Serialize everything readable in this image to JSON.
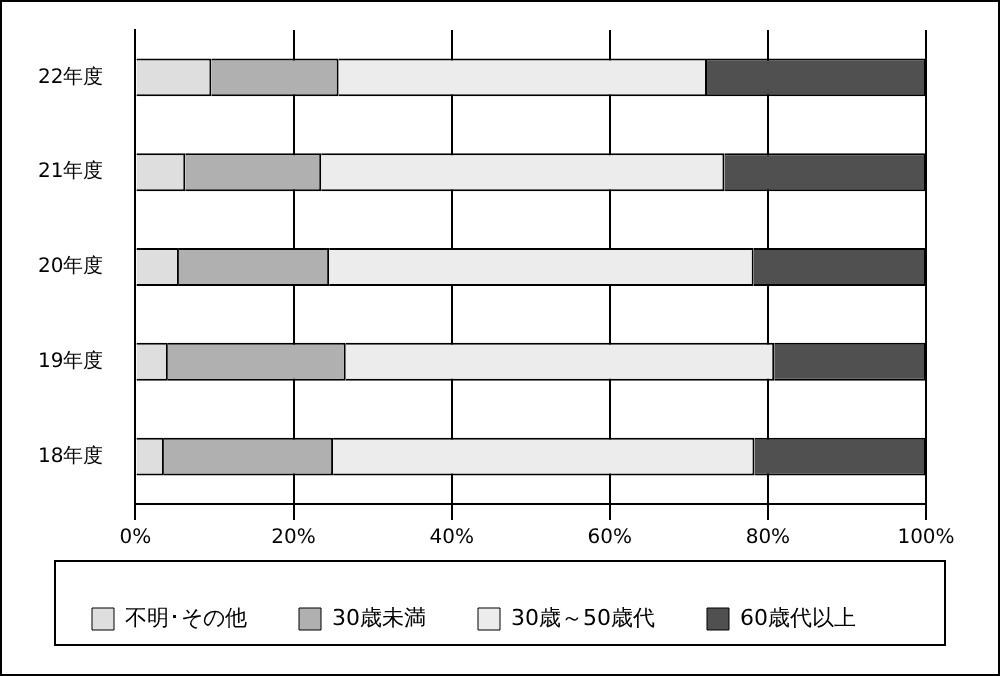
{
  "chart_data": {
    "type": "bar",
    "orientation": "horizontal",
    "stacked": true,
    "categories": [
      "22年度",
      "21年度",
      "20年度",
      "19年度",
      "18年度"
    ],
    "series": [
      {
        "name": "不明･その他",
        "color": "#dedede",
        "values": [
          9.6,
          6.3,
          5.5,
          4.1,
          3.6
        ]
      },
      {
        "name": "30歳未満",
        "color": "#b0b0b0",
        "values": [
          16.1,
          17.2,
          19.0,
          22.5,
          21.4
        ]
      },
      {
        "name": "30歳～50歳代",
        "color": "#ececec",
        "values": [
          46.6,
          51.0,
          53.7,
          54.2,
          53.3
        ]
      },
      {
        "name": "60歳代以上",
        "color": "#505050",
        "values": [
          27.7,
          25.5,
          21.8,
          19.2,
          21.7
        ]
      }
    ],
    "xlim": [
      0,
      100
    ],
    "xticks": [
      {
        "value": 0,
        "label": "0%"
      },
      {
        "value": 20,
        "label": "20%"
      },
      {
        "value": 40,
        "label": "40%"
      },
      {
        "value": 60,
        "label": "60%"
      },
      {
        "value": 80,
        "label": "80%"
      },
      {
        "value": 100,
        "label": "100%"
      }
    ],
    "grid": "x",
    "legend": "bottom"
  }
}
